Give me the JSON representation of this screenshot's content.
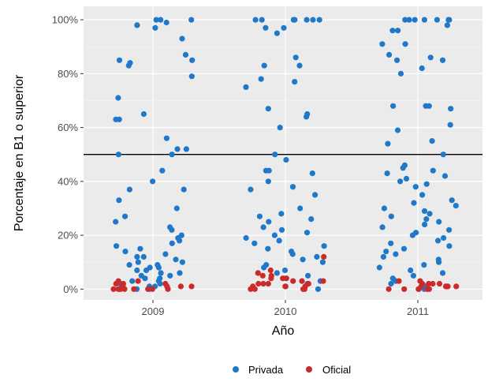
{
  "chart_data": {
    "type": "scatter",
    "title": "",
    "xlabel": "Año",
    "ylabel": "Porcentaje en B1 o superior",
    "x_categories": [
      "2009",
      "2010",
      "2011"
    ],
    "y_ticks": [
      0,
      20,
      40,
      60,
      80,
      100
    ],
    "y_tick_labels": [
      "0%",
      "20%",
      "40%",
      "60%",
      "80%",
      "100%"
    ],
    "ylim": [
      -4,
      105
    ],
    "grid": true,
    "legend_position": "bottom",
    "reference_line": {
      "y": 50,
      "color": "#000000"
    },
    "series": [
      {
        "name": "Privada",
        "color": "#1f78c8",
        "points": [
          [
            2009,
            100
          ],
          [
            2009,
            98
          ],
          [
            2009,
            100
          ],
          [
            2009,
            100
          ],
          [
            2009,
            99
          ],
          [
            2009,
            97
          ],
          [
            2009,
            93
          ],
          [
            2009,
            87
          ],
          [
            2009,
            85
          ],
          [
            2009,
            85
          ],
          [
            2009,
            84
          ],
          [
            2009,
            83
          ],
          [
            2009,
            79
          ],
          [
            2009,
            71
          ],
          [
            2009,
            65
          ],
          [
            2009,
            63
          ],
          [
            2009,
            63
          ],
          [
            2009,
            56
          ],
          [
            2009,
            52
          ],
          [
            2009,
            52
          ],
          [
            2009,
            50
          ],
          [
            2009,
            50
          ],
          [
            2009,
            44
          ],
          [
            2009,
            40
          ],
          [
            2009,
            37
          ],
          [
            2009,
            37
          ],
          [
            2009,
            33
          ],
          [
            2009,
            30
          ],
          [
            2009,
            27
          ],
          [
            2009,
            25
          ],
          [
            2009,
            23
          ],
          [
            2009,
            22
          ],
          [
            2009,
            20
          ],
          [
            2009,
            19
          ],
          [
            2009,
            18
          ],
          [
            2009,
            17
          ],
          [
            2009,
            16
          ],
          [
            2009,
            15
          ],
          [
            2009,
            14
          ],
          [
            2009,
            13
          ],
          [
            2009,
            12
          ],
          [
            2009,
            12
          ],
          [
            2009,
            11
          ],
          [
            2009,
            10
          ],
          [
            2009,
            10
          ],
          [
            2009,
            9
          ],
          [
            2009,
            9
          ],
          [
            2009,
            8
          ],
          [
            2009,
            8
          ],
          [
            2009,
            7
          ],
          [
            2009,
            7
          ],
          [
            2009,
            6
          ],
          [
            2009,
            6
          ],
          [
            2009,
            5
          ],
          [
            2009,
            5
          ],
          [
            2009,
            4
          ],
          [
            2009,
            4
          ],
          [
            2009,
            3
          ],
          [
            2009,
            3
          ],
          [
            2009,
            2
          ],
          [
            2009,
            2
          ],
          [
            2009,
            1
          ],
          [
            2009,
            1
          ],
          [
            2009,
            0
          ],
          [
            2009,
            0
          ],
          [
            2009,
            0
          ],
          [
            2010,
            100
          ],
          [
            2010,
            100
          ],
          [
            2010,
            100
          ],
          [
            2010,
            100
          ],
          [
            2010,
            100
          ],
          [
            2010,
            100
          ],
          [
            2010,
            100
          ],
          [
            2010,
            97
          ],
          [
            2010,
            97
          ],
          [
            2010,
            95
          ],
          [
            2010,
            86
          ],
          [
            2010,
            83
          ],
          [
            2010,
            83
          ],
          [
            2010,
            78
          ],
          [
            2010,
            77
          ],
          [
            2010,
            75
          ],
          [
            2010,
            67
          ],
          [
            2010,
            65
          ],
          [
            2010,
            64
          ],
          [
            2010,
            60
          ],
          [
            2010,
            50
          ],
          [
            2010,
            48
          ],
          [
            2010,
            44
          ],
          [
            2010,
            44
          ],
          [
            2010,
            43
          ],
          [
            2010,
            40
          ],
          [
            2010,
            38
          ],
          [
            2010,
            37
          ],
          [
            2010,
            35
          ],
          [
            2010,
            30
          ],
          [
            2010,
            28
          ],
          [
            2010,
            27
          ],
          [
            2010,
            26
          ],
          [
            2010,
            25
          ],
          [
            2010,
            23
          ],
          [
            2010,
            22
          ],
          [
            2010,
            21
          ],
          [
            2010,
            20
          ],
          [
            2010,
            19
          ],
          [
            2010,
            18
          ],
          [
            2010,
            17
          ],
          [
            2010,
            16
          ],
          [
            2010,
            15
          ],
          [
            2010,
            14
          ],
          [
            2010,
            13
          ],
          [
            2010,
            12
          ],
          [
            2010,
            11
          ],
          [
            2010,
            10
          ],
          [
            2010,
            9
          ],
          [
            2010,
            8
          ],
          [
            2010,
            7
          ],
          [
            2010,
            6
          ],
          [
            2010,
            5
          ],
          [
            2010,
            4
          ],
          [
            2010,
            3
          ],
          [
            2010,
            2
          ],
          [
            2010,
            1
          ],
          [
            2010,
            0
          ],
          [
            2011,
            100
          ],
          [
            2011,
            100
          ],
          [
            2011,
            100
          ],
          [
            2011,
            100
          ],
          [
            2011,
            100
          ],
          [
            2011,
            100
          ],
          [
            2011,
            100
          ],
          [
            2011,
            98
          ],
          [
            2011,
            96
          ],
          [
            2011,
            96
          ],
          [
            2011,
            91
          ],
          [
            2011,
            91
          ],
          [
            2011,
            87
          ],
          [
            2011,
            86
          ],
          [
            2011,
            85
          ],
          [
            2011,
            85
          ],
          [
            2011,
            82
          ],
          [
            2011,
            80
          ],
          [
            2011,
            68
          ],
          [
            2011,
            68
          ],
          [
            2011,
            68
          ],
          [
            2011,
            67
          ],
          [
            2011,
            61
          ],
          [
            2011,
            59
          ],
          [
            2011,
            55
          ],
          [
            2011,
            54
          ],
          [
            2011,
            50
          ],
          [
            2011,
            46
          ],
          [
            2011,
            45
          ],
          [
            2011,
            44
          ],
          [
            2011,
            43
          ],
          [
            2011,
            42
          ],
          [
            2011,
            41
          ],
          [
            2011,
            40
          ],
          [
            2011,
            39
          ],
          [
            2011,
            38
          ],
          [
            2011,
            35
          ],
          [
            2011,
            33
          ],
          [
            2011,
            32
          ],
          [
            2011,
            31
          ],
          [
            2011,
            30
          ],
          [
            2011,
            29
          ],
          [
            2011,
            28
          ],
          [
            2011,
            27
          ],
          [
            2011,
            26
          ],
          [
            2011,
            25
          ],
          [
            2011,
            24
          ],
          [
            2011,
            23
          ],
          [
            2011,
            22
          ],
          [
            2011,
            21
          ],
          [
            2011,
            20
          ],
          [
            2011,
            19
          ],
          [
            2011,
            18
          ],
          [
            2011,
            17
          ],
          [
            2011,
            16
          ],
          [
            2011,
            15
          ],
          [
            2011,
            14
          ],
          [
            2011,
            13
          ],
          [
            2011,
            12
          ],
          [
            2011,
            11
          ],
          [
            2011,
            10
          ],
          [
            2011,
            9
          ],
          [
            2011,
            8
          ],
          [
            2011,
            7
          ],
          [
            2011,
            6
          ],
          [
            2011,
            5
          ],
          [
            2011,
            4
          ],
          [
            2011,
            3
          ],
          [
            2011,
            2
          ],
          [
            2011,
            1
          ],
          [
            2011,
            0
          ]
        ]
      },
      {
        "name": "Oficial",
        "color": "#cc2a2a",
        "points": [
          [
            2009,
            3
          ],
          [
            2009,
            2
          ],
          [
            2009,
            2
          ],
          [
            2009,
            1
          ],
          [
            2009,
            1
          ],
          [
            2009,
            1
          ],
          [
            2009,
            0
          ],
          [
            2009,
            0
          ],
          [
            2009,
            0
          ],
          [
            2009,
            0
          ],
          [
            2009,
            0
          ],
          [
            2009,
            1
          ],
          [
            2009,
            2
          ],
          [
            2009,
            0
          ],
          [
            2009,
            0
          ],
          [
            2009,
            1
          ],
          [
            2009,
            0
          ],
          [
            2009,
            3
          ],
          [
            2010,
            12
          ],
          [
            2010,
            7
          ],
          [
            2010,
            6
          ],
          [
            2010,
            5
          ],
          [
            2010,
            5
          ],
          [
            2010,
            4
          ],
          [
            2010,
            4
          ],
          [
            2010,
            3
          ],
          [
            2010,
            3
          ],
          [
            2010,
            3
          ],
          [
            2010,
            2
          ],
          [
            2010,
            2
          ],
          [
            2010,
            2
          ],
          [
            2010,
            1
          ],
          [
            2010,
            1
          ],
          [
            2010,
            1
          ],
          [
            2010,
            0
          ],
          [
            2010,
            0
          ],
          [
            2010,
            0
          ],
          [
            2010,
            0
          ],
          [
            2010,
            4
          ],
          [
            2010,
            2
          ],
          [
            2011,
            3
          ],
          [
            2011,
            2
          ],
          [
            2011,
            2
          ],
          [
            2011,
            1
          ],
          [
            2011,
            1
          ],
          [
            2011,
            1
          ],
          [
            2011,
            0
          ],
          [
            2011,
            0
          ],
          [
            2011,
            0
          ],
          [
            2011,
            0
          ],
          [
            2011,
            3
          ],
          [
            2011,
            2
          ],
          [
            2011,
            1
          ],
          [
            2011,
            0
          ],
          [
            2011,
            2
          ],
          [
            2011,
            1
          ],
          [
            2011,
            0
          ]
        ]
      }
    ]
  }
}
